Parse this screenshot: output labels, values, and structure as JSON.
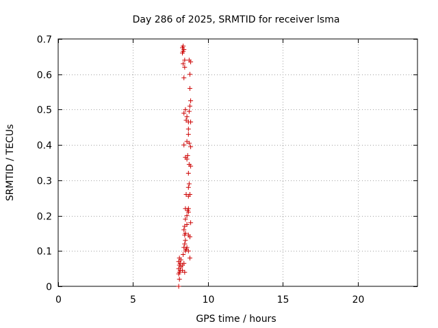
{
  "chart_data": {
    "type": "scatter",
    "title": "Day 286 of 2025, SRMTID for receiver lsma",
    "xlabel": "GPS time / hours",
    "ylabel": "SRMTID / TECUs",
    "xlim": [
      0,
      24
    ],
    "ylim": [
      0,
      0.7
    ],
    "xticks": [
      0,
      5,
      10,
      15,
      20
    ],
    "yticks": [
      0,
      0.1,
      0.2,
      0.3,
      0.4,
      0.5,
      0.6,
      0.7
    ],
    "xtick_labels": [
      "0",
      "5",
      "10",
      "15",
      "20"
    ],
    "ytick_labels": [
      "0",
      "0.1",
      "0.2",
      "0.3",
      "0.4",
      "0.5",
      "0.6",
      "0.7"
    ],
    "grid": true,
    "marker": "+",
    "color": "#cc0000",
    "series": [
      {
        "points": [
          [
            8.05,
            0.0
          ],
          [
            8.1,
            0.02
          ],
          [
            8.05,
            0.035
          ],
          [
            8.1,
            0.04
          ],
          [
            8.15,
            0.045
          ],
          [
            8.05,
            0.05
          ],
          [
            8.2,
            0.055
          ],
          [
            8.1,
            0.06
          ],
          [
            8.15,
            0.065
          ],
          [
            8.05,
            0.07
          ],
          [
            8.2,
            0.075
          ],
          [
            8.1,
            0.08
          ],
          [
            8.3,
            0.045
          ],
          [
            8.3,
            0.06
          ],
          [
            8.4,
            0.065
          ],
          [
            8.45,
            0.04
          ],
          [
            8.35,
            0.09
          ],
          [
            8.5,
            0.1
          ],
          [
            8.55,
            0.105
          ],
          [
            8.6,
            0.11
          ],
          [
            8.4,
            0.11
          ],
          [
            8.45,
            0.12
          ],
          [
            8.5,
            0.13
          ],
          [
            8.45,
            0.145
          ],
          [
            8.5,
            0.15
          ],
          [
            8.4,
            0.16
          ],
          [
            8.45,
            0.17
          ],
          [
            8.6,
            0.175
          ],
          [
            8.85,
            0.18
          ],
          [
            8.5,
            0.19
          ],
          [
            8.6,
            0.2
          ],
          [
            8.7,
            0.21
          ],
          [
            8.65,
            0.215
          ],
          [
            8.5,
            0.22
          ],
          [
            8.7,
            0.22
          ],
          [
            8.8,
            0.14
          ],
          [
            8.7,
            0.145
          ],
          [
            8.8,
            0.08
          ],
          [
            8.7,
            0.1
          ],
          [
            8.55,
            0.26
          ],
          [
            8.7,
            0.255
          ],
          [
            8.8,
            0.26
          ],
          [
            8.7,
            0.28
          ],
          [
            8.75,
            0.29
          ],
          [
            8.7,
            0.32
          ],
          [
            8.85,
            0.34
          ],
          [
            8.75,
            0.345
          ],
          [
            8.6,
            0.36
          ],
          [
            8.5,
            0.365
          ],
          [
            8.65,
            0.37
          ],
          [
            8.4,
            0.4
          ],
          [
            8.6,
            0.41
          ],
          [
            8.75,
            0.405
          ],
          [
            8.85,
            0.395
          ],
          [
            8.7,
            0.43
          ],
          [
            8.7,
            0.445
          ],
          [
            8.55,
            0.47
          ],
          [
            8.7,
            0.465
          ],
          [
            8.85,
            0.465
          ],
          [
            8.6,
            0.48
          ],
          [
            8.4,
            0.49
          ],
          [
            8.5,
            0.5
          ],
          [
            8.75,
            0.495
          ],
          [
            8.8,
            0.51
          ],
          [
            8.85,
            0.525
          ],
          [
            8.8,
            0.56
          ],
          [
            8.4,
            0.59
          ],
          [
            8.8,
            0.6
          ],
          [
            8.45,
            0.62
          ],
          [
            8.35,
            0.63
          ],
          [
            8.45,
            0.64
          ],
          [
            8.75,
            0.64
          ],
          [
            8.85,
            0.635
          ],
          [
            8.3,
            0.66
          ],
          [
            8.35,
            0.665
          ],
          [
            8.4,
            0.67
          ],
          [
            8.3,
            0.675
          ],
          [
            8.35,
            0.68
          ]
        ]
      }
    ]
  }
}
